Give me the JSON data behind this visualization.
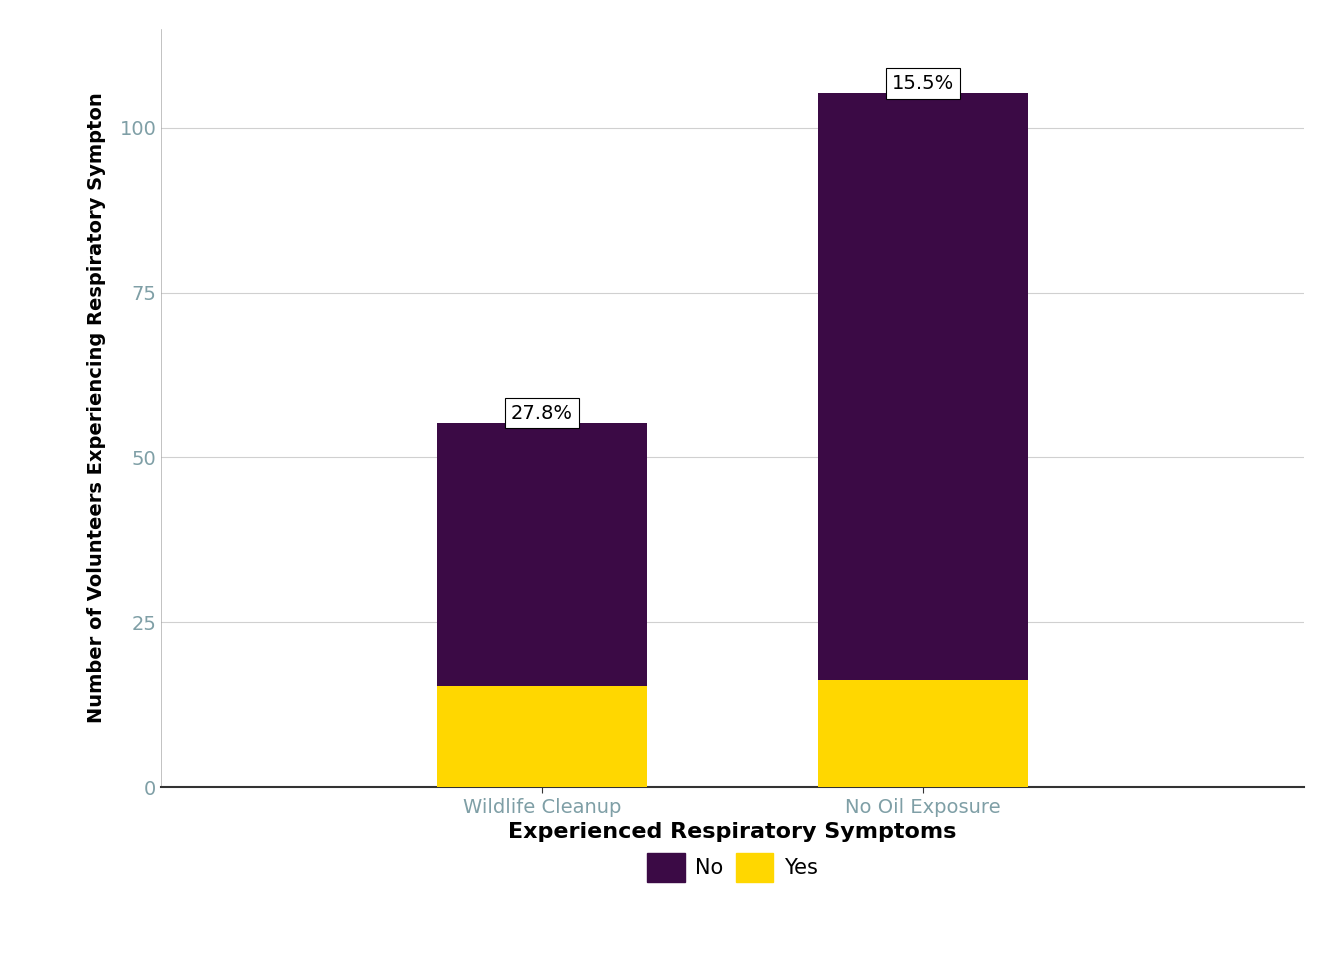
{
  "categories": [
    "Wildlife Cleanup",
    "No Oil Exposure"
  ],
  "yes_values": [
    15.3,
    16.3
  ],
  "no_values": [
    40.0,
    89.0
  ],
  "labels": [
    "27.8%",
    "15.5%"
  ],
  "yes_color": "#FFD700",
  "no_color": "#3B0A45",
  "ylabel": "Number of Volunteers Experiencing Respiratory Sympton",
  "legend_title": "Experienced Respiratory Symptoms",
  "legend_labels": [
    "No",
    "Yes"
  ],
  "yticks": [
    0,
    25,
    50,
    75,
    100
  ],
  "background_color": "#FFFFFF",
  "grid_color": "#D0D0D0",
  "bar_width": 0.55,
  "font_size": 14,
  "tick_label_color": "#7F9FA6",
  "axis_color": "#333333"
}
